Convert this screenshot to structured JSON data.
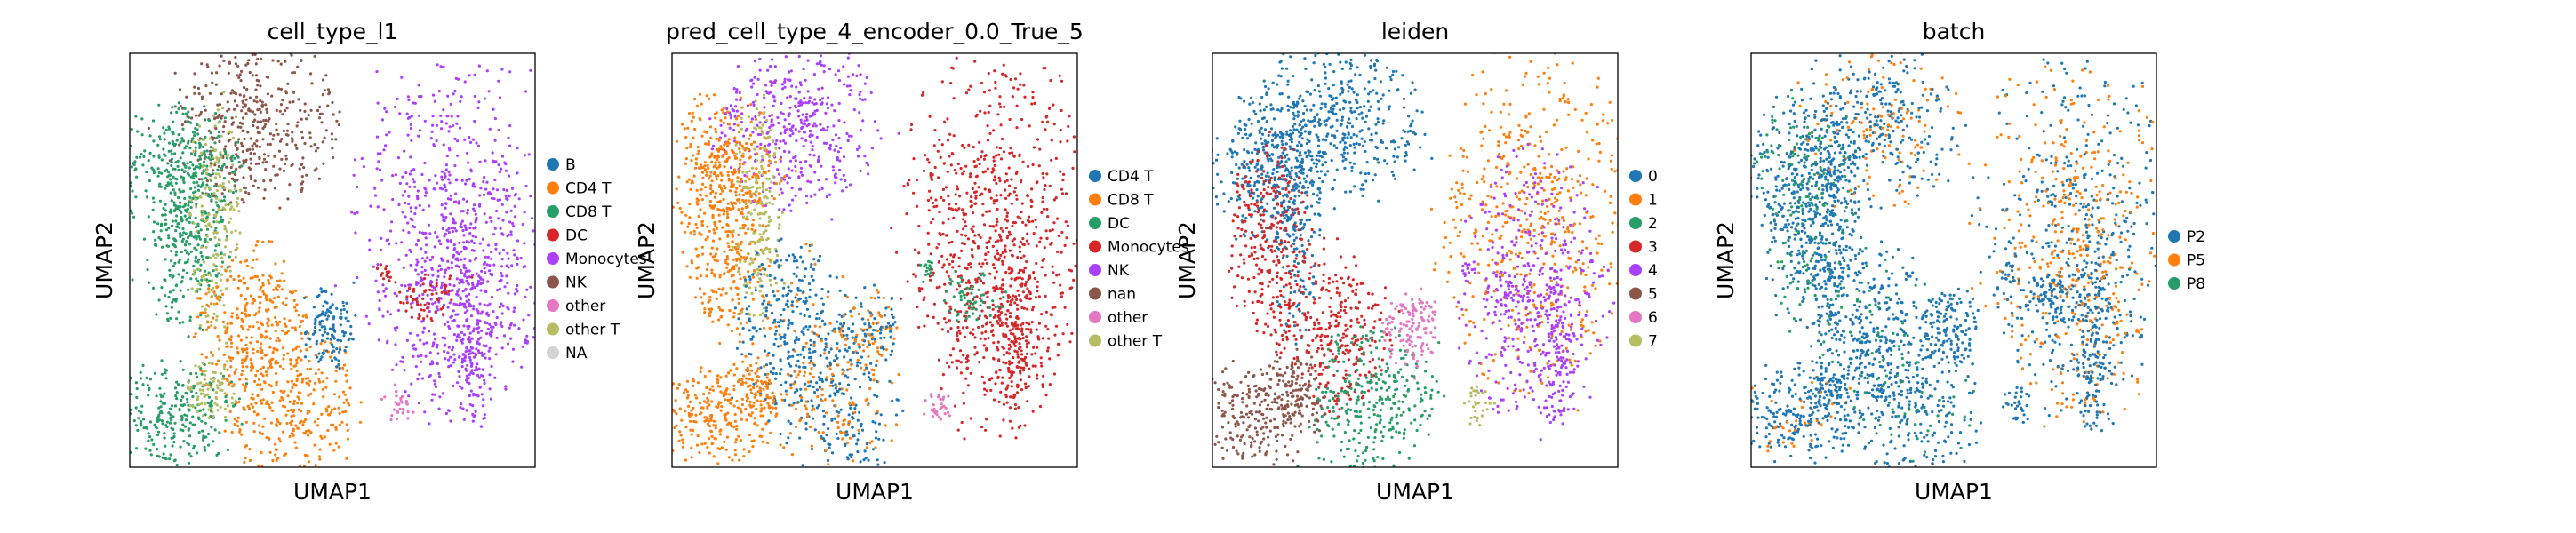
{
  "figure": {
    "background": "#ffffff"
  },
  "chart_data": [
    {
      "type": "scatter",
      "title": "cell_type_l1",
      "xlabel": "UMAP1",
      "ylabel": "UMAP2",
      "grid": false,
      "legend_position": "right",
      "legend": [
        {
          "label": "B",
          "color": "#1f77b4"
        },
        {
          "label": "CD4 T",
          "color": "#ff7f0e"
        },
        {
          "label": "CD8 T",
          "color": "#279e68"
        },
        {
          "label": "DC",
          "color": "#d62728"
        },
        {
          "label": "Monocytes",
          "color": "#aa40fc"
        },
        {
          "label": "NK",
          "color": "#8c564b"
        },
        {
          "label": "other",
          "color": "#e377c2"
        },
        {
          "label": "other T",
          "color": "#b5bd61"
        },
        {
          "label": "NA",
          "color": "#d3d3d3"
        }
      ]
    },
    {
      "type": "scatter",
      "title": "pred_cell_type_4_encoder_0.0_True_5",
      "xlabel": "UMAP1",
      "ylabel": "UMAP2",
      "grid": false,
      "legend_position": "right",
      "legend": [
        {
          "label": "CD4 T",
          "color": "#1f77b4"
        },
        {
          "label": "CD8 T",
          "color": "#ff7f0e"
        },
        {
          "label": "DC",
          "color": "#279e68"
        },
        {
          "label": "Monocytes",
          "color": "#d62728"
        },
        {
          "label": "NK",
          "color": "#aa40fc"
        },
        {
          "label": "nan",
          "color": "#8c564b"
        },
        {
          "label": "other",
          "color": "#e377c2"
        },
        {
          "label": "other T",
          "color": "#b5bd61"
        }
      ]
    },
    {
      "type": "scatter",
      "title": "leiden",
      "xlabel": "UMAP1",
      "ylabel": "UMAP2",
      "grid": false,
      "legend_position": "right",
      "legend": [
        {
          "label": "0",
          "color": "#1f77b4"
        },
        {
          "label": "1",
          "color": "#ff7f0e"
        },
        {
          "label": "2",
          "color": "#279e68"
        },
        {
          "label": "3",
          "color": "#d62728"
        },
        {
          "label": "4",
          "color": "#aa40fc"
        },
        {
          "label": "5",
          "color": "#8c564b"
        },
        {
          "label": "6",
          "color": "#e377c2"
        },
        {
          "label": "7",
          "color": "#b5bd61"
        }
      ]
    },
    {
      "type": "scatter",
      "title": "batch",
      "xlabel": "UMAP1",
      "ylabel": "UMAP2",
      "grid": false,
      "legend_position": "right",
      "legend": [
        {
          "label": "P2",
          "color": "#1f77b4"
        },
        {
          "label": "P5",
          "color": "#ff7f0e"
        },
        {
          "label": "P8",
          "color": "#279e68"
        }
      ]
    }
  ]
}
